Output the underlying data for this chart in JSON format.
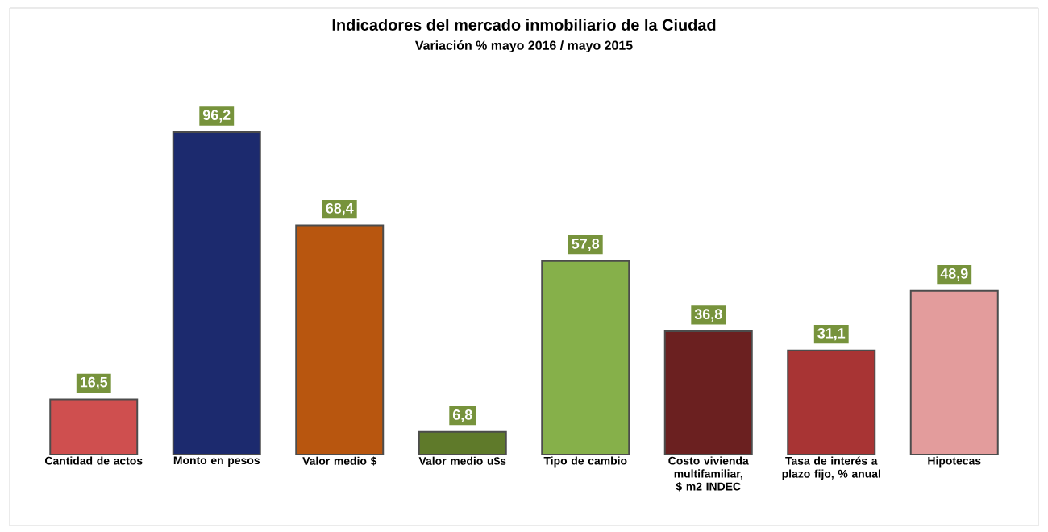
{
  "chart_data": {
    "type": "bar",
    "title": "Indicadores del mercado inmobiliario de la Ciudad",
    "subtitle": "Variación % mayo 2016 / mayo 2015",
    "categories": [
      "Cantidad de actos",
      "Monto en pesos",
      "Valor medio $",
      "Valor medio u$s",
      "Tipo de cambio",
      "Costo vivienda multifamiliar, $ m2 INDEC",
      "Tasa de interés a plazo fijo, % anual",
      "Hipotecas"
    ],
    "values": [
      16.5,
      96.2,
      68.4,
      6.8,
      57.8,
      36.8,
      31.1,
      48.9
    ],
    "value_labels": [
      "16,5",
      "96,2",
      "68,4",
      "6,8",
      "57,8",
      "36,8",
      "31,1",
      "48,9"
    ],
    "colors": [
      "#cf4f4f",
      "#1c2a6e",
      "#b8560f",
      "#5f7a2a",
      "#86b04a",
      "#6b2020",
      "#a83434",
      "#e39c9c"
    ]
  }
}
